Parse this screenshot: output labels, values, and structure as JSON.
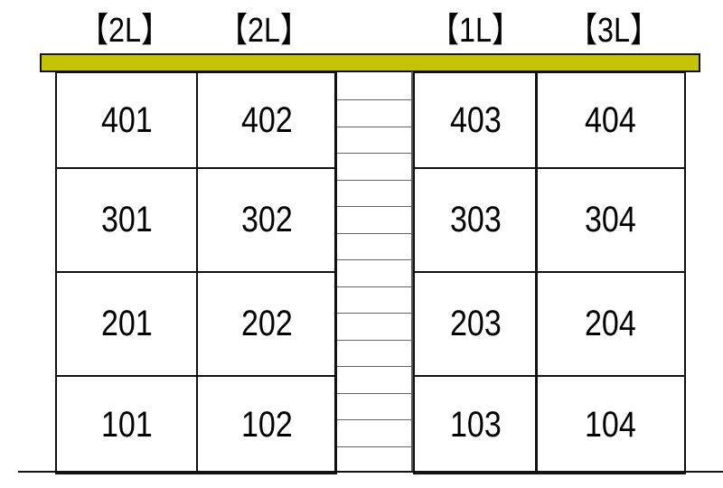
{
  "colors": {
    "roof": "#c4c400",
    "lines": "#111111"
  },
  "layout_labels": [
    "【2L】",
    "【2L】",
    "【1L】",
    "【3L】"
  ],
  "floors": [
    [
      "401",
      "402",
      "403",
      "404"
    ],
    [
      "301",
      "302",
      "303",
      "304"
    ],
    [
      "201",
      "202",
      "203",
      "204"
    ],
    [
      "101",
      "102",
      "103",
      "104"
    ]
  ]
}
